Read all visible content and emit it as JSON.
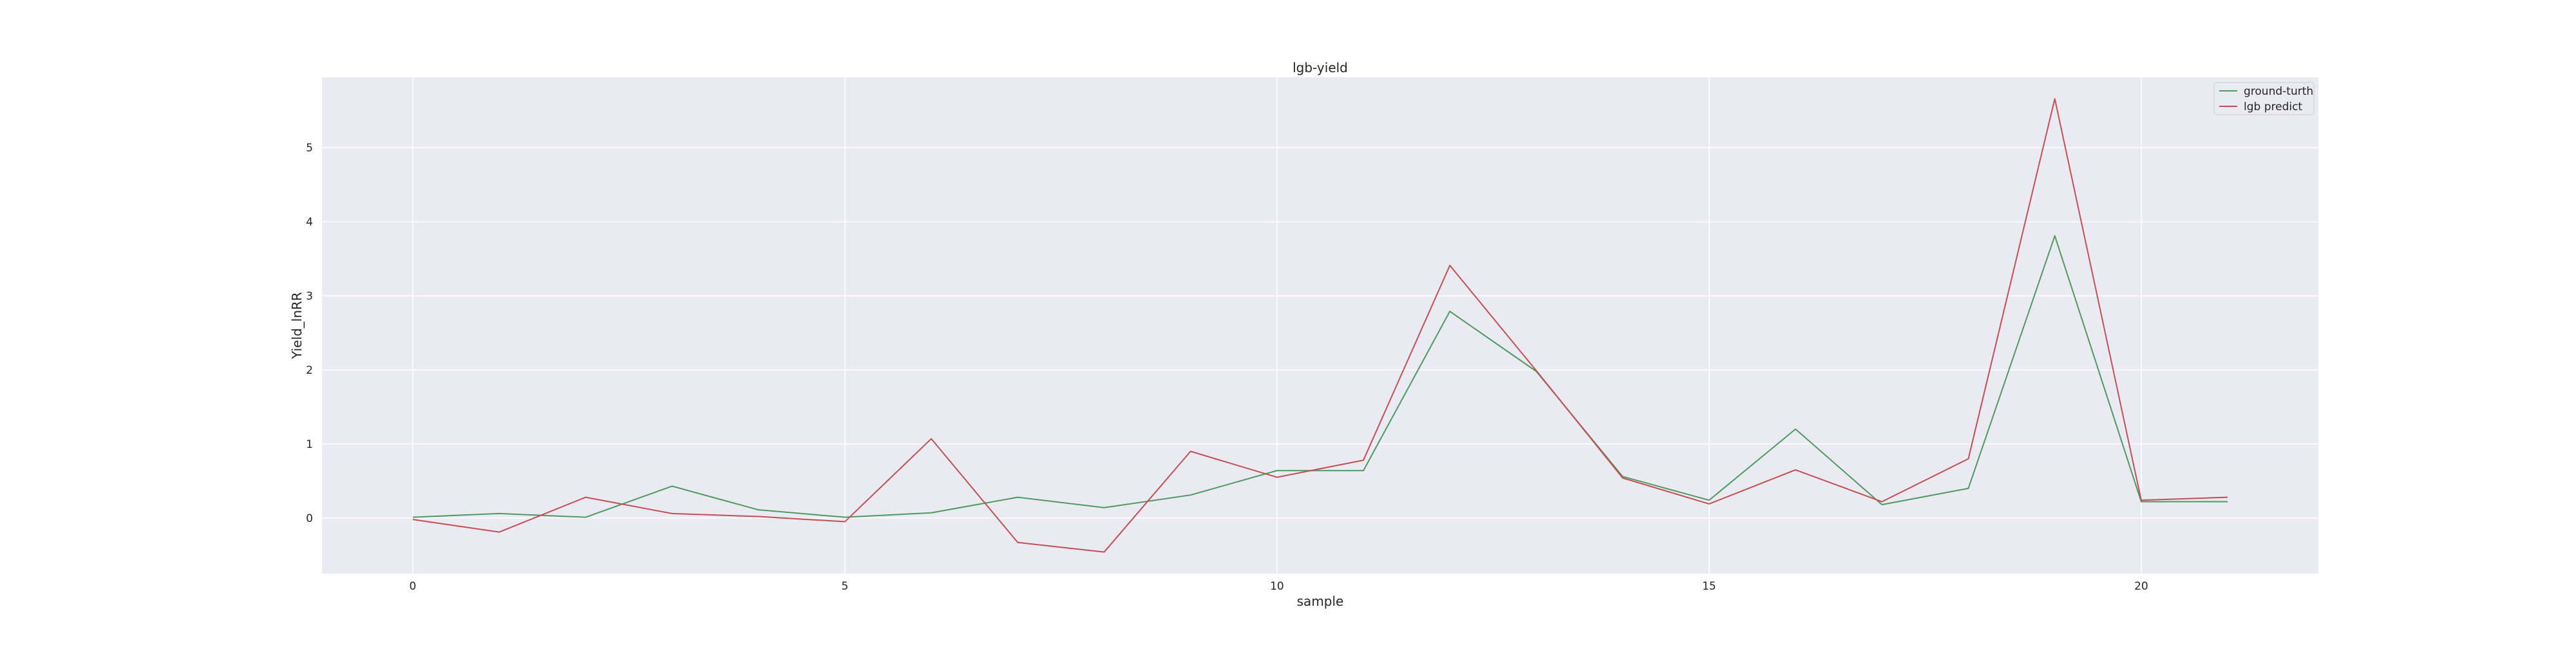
{
  "chart_data": {
    "type": "line",
    "title": "lgb-yield",
    "xlabel": "sample",
    "ylabel": "Yield_lnRR",
    "xlim": [
      -1.05,
      22.05
    ],
    "ylim": [
      -0.75,
      5.95
    ],
    "x_ticks": [
      0,
      5,
      10,
      15,
      20
    ],
    "y_ticks": [
      0,
      1,
      2,
      3,
      4,
      5
    ],
    "x_tick_labels": [
      "0",
      "5",
      "10",
      "15",
      "20"
    ],
    "y_tick_labels": [
      "0",
      "1",
      "2",
      "3",
      "4",
      "5"
    ],
    "grid": true,
    "legend_position": "top-right",
    "x": [
      0,
      1,
      2,
      3,
      4,
      5,
      6,
      7,
      8,
      9,
      10,
      11,
      12,
      13,
      14,
      15,
      16,
      17,
      18,
      19,
      20,
      21
    ],
    "series": [
      {
        "name": "ground-turth",
        "color": "#4c9a5e",
        "values": [
          0.01,
          0.06,
          0.01,
          0.43,
          0.11,
          0.01,
          0.07,
          0.28,
          0.14,
          0.31,
          0.64,
          0.64,
          2.79,
          1.98,
          0.56,
          0.24,
          1.2,
          0.18,
          0.4,
          3.81,
          0.22,
          0.22
        ]
      },
      {
        "name": "lgb predict",
        "color": "#c44e52",
        "values": [
          -0.02,
          -0.19,
          0.28,
          0.06,
          0.02,
          -0.05,
          1.07,
          -0.33,
          -0.46,
          0.9,
          0.55,
          0.78,
          3.41,
          1.99,
          0.54,
          0.19,
          0.65,
          0.22,
          0.8,
          5.66,
          0.24,
          0.28
        ]
      }
    ]
  },
  "colors": {
    "plot_background": "#eaeaf2",
    "grid": "#ffffff",
    "legend_border": "#cccccc"
  }
}
